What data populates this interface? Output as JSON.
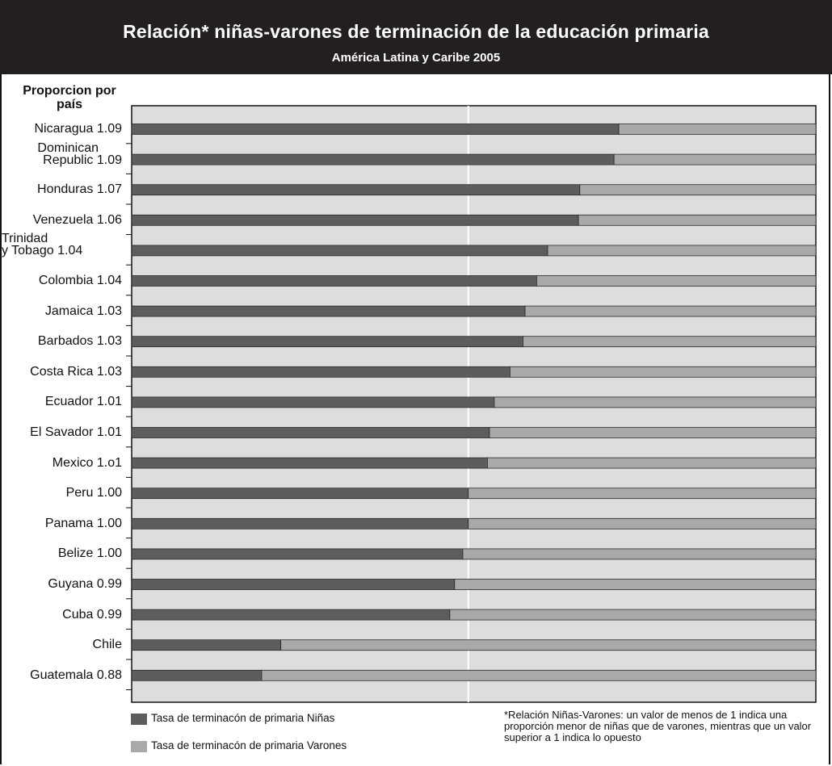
{
  "header": {
    "title": "Relación* niñas-varones de terminación de la educación primaria",
    "subtitle": "América Latina y Caribe 2005"
  },
  "y_header": "Proporcion por país",
  "legend": {
    "girls": "Tasa de terminacón de primaria Niñas",
    "boys": "Tasa de terminacón de primaria Varones"
  },
  "note": "*Relación Niñas-Varones: un valor de menos de 1 indica una proporción menor de niñas que de varones, mientras que un valor superior a 1 indica lo opuesto",
  "colors": {
    "girls": "#5d5d5f",
    "boys": "#a7a9ab",
    "plot_bg": "#dcdddf",
    "header_bg": "#231f20",
    "reference_line": "#ffffff"
  },
  "chart_data": {
    "type": "bar",
    "orientation": "horizontal",
    "stacked": true,
    "reference_line": "white vertical line at ratio 1.00",
    "categories": [
      "Nicaragua 1.09",
      "Dominican Republic 1.09",
      "Honduras 1.07",
      "Venezuela 1.06",
      "Trinidad y Tobago 1.04",
      "Colombia 1.04",
      "Jamaica 1.03",
      "Barbados 1.03",
      "Costa Rica 1.03",
      "Ecuador 1.01",
      "El Savador 1.01",
      "Mexico 1.o1",
      "Peru 1.00",
      "Panama 1.00",
      "Belize 1.00",
      "Guyana 0.99",
      "Cuba 0.99",
      "Chile",
      "Guatemala 0.88"
    ],
    "label_lines": [
      [
        "Nicaragua 1.09"
      ],
      [
        "Dominican",
        "Republic 1.09"
      ],
      [
        "Honduras 1.07"
      ],
      [
        "Venezuela 1.06"
      ],
      [
        "Trinidad",
        "y Tobago 1.04"
      ],
      [
        "Colombia 1.04"
      ],
      [
        "Jamaica 1.03"
      ],
      [
        "Barbados 1.03"
      ],
      [
        "Costa Rica 1.03"
      ],
      [
        "Ecuador 1.01"
      ],
      [
        "El Savador 1.01"
      ],
      [
        "Mexico 1.o1"
      ],
      [
        "Peru 1.00"
      ],
      [
        "Panama 1.00"
      ],
      [
        "Belize 1.00"
      ],
      [
        "Guyana 0.99"
      ],
      [
        "Cuba 0.99"
      ],
      [
        "Chile"
      ],
      [
        "Guatemala 0.88"
      ]
    ],
    "series": [
      {
        "name": "Tasa de terminacón de primaria Niñas",
        "values": [
          0.712,
          0.705,
          0.655,
          0.653,
          0.608,
          0.592,
          0.575,
          0.572,
          0.553,
          0.53,
          0.523,
          0.52,
          0.492,
          0.492,
          0.484,
          0.472,
          0.465,
          0.218,
          0.19
        ]
      },
      {
        "name": "Tasa de terminacón de primaria Varones",
        "values": [
          0.288,
          0.295,
          0.345,
          0.347,
          0.392,
          0.408,
          0.425,
          0.428,
          0.447,
          0.47,
          0.477,
          0.48,
          0.508,
          0.508,
          0.516,
          0.528,
          0.535,
          0.782,
          0.81
        ]
      }
    ],
    "xlim": [
      0,
      1
    ]
  }
}
